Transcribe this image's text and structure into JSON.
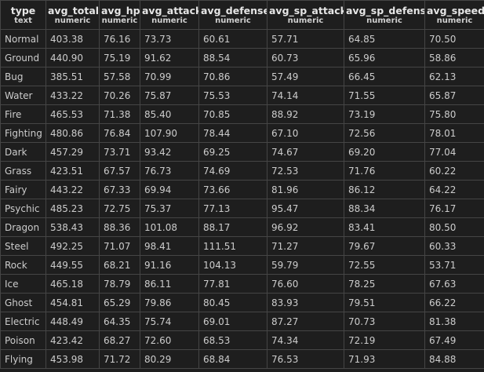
{
  "columns": [
    {
      "name": "type",
      "dtype": "text"
    },
    {
      "name": "avg_total",
      "dtype": "numeric"
    },
    {
      "name": "avg_hp",
      "dtype": "numeric"
    },
    {
      "name": "avg_attack",
      "dtype": "numeric"
    },
    {
      "name": "avg_defense",
      "dtype": "numeric"
    },
    {
      "name": "avg_sp_attack",
      "dtype": "numeric"
    },
    {
      "name": "avg_sp_defense",
      "dtype": "numeric"
    },
    {
      "name": "avg_speed",
      "dtype": "numeric"
    }
  ],
  "rows": [
    [
      "Normal",
      "403.38",
      "76.16",
      "73.73",
      "60.61",
      "57.71",
      "64.85",
      "70.50"
    ],
    [
      "Ground",
      "440.90",
      "75.19",
      "91.62",
      "88.54",
      "60.73",
      "65.96",
      "58.86"
    ],
    [
      "Bug",
      "385.51",
      "57.58",
      "70.99",
      "70.86",
      "57.49",
      "66.45",
      "62.13"
    ],
    [
      "Water",
      "433.22",
      "70.26",
      "75.87",
      "75.53",
      "74.14",
      "71.55",
      "65.87"
    ],
    [
      "Fire",
      "465.53",
      "71.38",
      "85.40",
      "70.85",
      "88.92",
      "73.19",
      "75.80"
    ],
    [
      "Fighting",
      "480.86",
      "76.84",
      "107.90",
      "78.44",
      "67.10",
      "72.56",
      "78.01"
    ],
    [
      "Dark",
      "457.29",
      "73.71",
      "93.42",
      "69.25",
      "74.67",
      "69.20",
      "77.04"
    ],
    [
      "Grass",
      "423.51",
      "67.57",
      "76.73",
      "74.69",
      "72.53",
      "71.76",
      "60.22"
    ],
    [
      "Fairy",
      "443.22",
      "67.33",
      "69.94",
      "73.66",
      "81.96",
      "86.12",
      "64.22"
    ],
    [
      "Psychic",
      "485.23",
      "72.75",
      "75.37",
      "77.13",
      "95.47",
      "88.34",
      "76.17"
    ],
    [
      "Dragon",
      "538.43",
      "88.36",
      "101.08",
      "88.17",
      "96.92",
      "83.41",
      "80.50"
    ],
    [
      "Steel",
      "492.25",
      "71.07",
      "98.41",
      "111.51",
      "71.27",
      "79.67",
      "60.33"
    ],
    [
      "Rock",
      "449.55",
      "68.21",
      "91.16",
      "104.13",
      "59.79",
      "72.55",
      "53.71"
    ],
    [
      "Ice",
      "465.18",
      "78.79",
      "86.11",
      "77.81",
      "76.60",
      "78.25",
      "67.63"
    ],
    [
      "Ghost",
      "454.81",
      "65.29",
      "79.86",
      "80.45",
      "83.93",
      "79.51",
      "66.22"
    ],
    [
      "Electric",
      "448.49",
      "64.35",
      "75.74",
      "69.01",
      "87.27",
      "70.73",
      "81.38"
    ],
    [
      "Poison",
      "423.42",
      "68.27",
      "72.60",
      "68.53",
      "74.34",
      "72.19",
      "67.49"
    ],
    [
      "Flying",
      "453.98",
      "71.72",
      "80.29",
      "68.84",
      "76.53",
      "71.93",
      "84.88"
    ]
  ]
}
